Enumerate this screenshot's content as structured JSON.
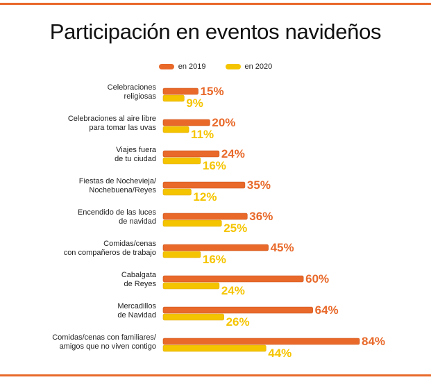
{
  "chart_data": {
    "type": "bar",
    "orientation": "horizontal",
    "title": "Participación en eventos navideños",
    "categories": [
      [
        "Celebraciones",
        "religiosas"
      ],
      [
        "Celebraciones al aire libre",
        "para tomar las uvas"
      ],
      [
        "Viajes fuera",
        "de tu ciudad"
      ],
      [
        "Fiestas de Nochevieja/",
        "Nochebuena/Reyes"
      ],
      [
        "Encendido de las luces",
        "de navidad"
      ],
      [
        "Comidas/cenas",
        "con compañeros de trabajo"
      ],
      [
        "Cabalgata",
        "de Reyes"
      ],
      [
        "Mercadillos",
        "de Navidad"
      ],
      [
        "Comidas/cenas con familiares/",
        "amigos que no viven contigo"
      ]
    ],
    "series": [
      {
        "name": "en 2019",
        "color": "#e8692a",
        "values": [
          15,
          20,
          24,
          35,
          36,
          45,
          60,
          64,
          84
        ]
      },
      {
        "name": "en 2020",
        "color": "#f5c400",
        "values": [
          9,
          11,
          16,
          12,
          25,
          16,
          24,
          26,
          44
        ]
      }
    ],
    "value_suffix": "%",
    "xlim": [
      0,
      100
    ],
    "grid": false,
    "legend": "top-center",
    "accent_color": "#e8692a"
  }
}
